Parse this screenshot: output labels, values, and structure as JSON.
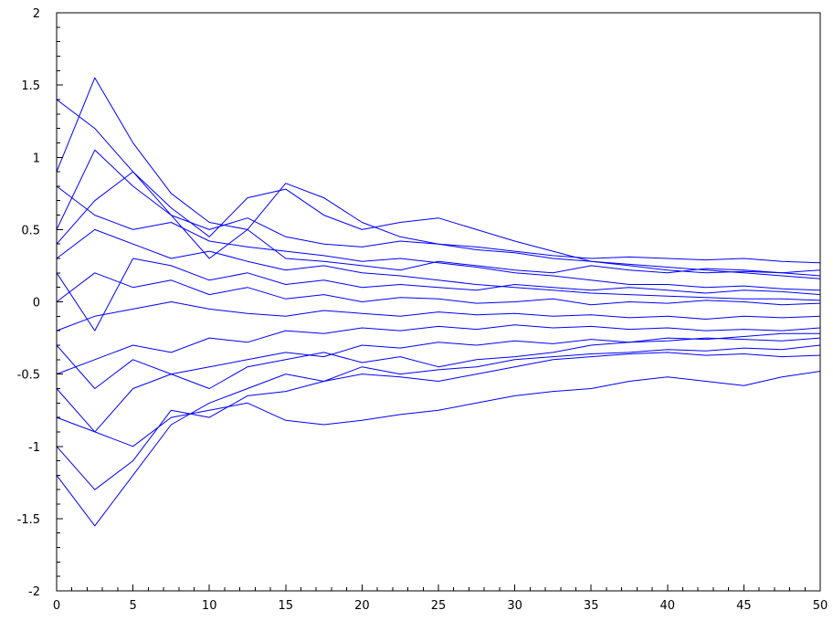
{
  "chart_data": {
    "type": "line",
    "title": "",
    "xlabel": "",
    "ylabel": "",
    "xlim": [
      0,
      50
    ],
    "ylim": [
      -2,
      2
    ],
    "grid": false,
    "legend": "none",
    "series_color": "#0000ff",
    "axis_color": "#000000",
    "background": "#ffffff",
    "x_ticks": [
      {
        "value": 0,
        "label": "0"
      },
      {
        "value": 5,
        "label": "5"
      },
      {
        "value": 10,
        "label": "10"
      },
      {
        "value": 15,
        "label": "15"
      },
      {
        "value": 20,
        "label": "20"
      },
      {
        "value": 25,
        "label": "25"
      },
      {
        "value": 30,
        "label": "30"
      },
      {
        "value": 35,
        "label": "35"
      },
      {
        "value": 40,
        "label": "40"
      },
      {
        "value": 45,
        "label": "45"
      },
      {
        "value": 50,
        "label": "50"
      }
    ],
    "y_ticks": [
      {
        "value": -2,
        "label": "-2"
      },
      {
        "value": -1.5,
        "label": "-1.5"
      },
      {
        "value": -1,
        "label": "-1"
      },
      {
        "value": -0.5,
        "label": "-0.5"
      },
      {
        "value": 0,
        "label": "0"
      },
      {
        "value": 0.5,
        "label": "0.5"
      },
      {
        "value": 1,
        "label": "1"
      },
      {
        "value": 1.5,
        "label": "1.5"
      },
      {
        "value": 2,
        "label": "2"
      }
    ],
    "series": [
      {
        "x": [
          0,
          2.5,
          5,
          7.5,
          10,
          12.5,
          15,
          17.5,
          20,
          22.5,
          25,
          27.5,
          30,
          32.5,
          35,
          37.5,
          40,
          42.5,
          45,
          47.5,
          50
        ],
        "values": [
          0.9,
          1.55,
          1.1,
          0.75,
          0.55,
          0.5,
          0.82,
          0.72,
          0.55,
          0.45,
          0.4,
          0.38,
          0.35,
          0.32,
          0.3,
          0.31,
          0.3,
          0.29,
          0.3,
          0.28,
          0.27
        ]
      },
      {
        "x": [
          0,
          2.5,
          5,
          7.5,
          10,
          12.5,
          15,
          17.5,
          20,
          22.5,
          25,
          27.5,
          30,
          32.5,
          35,
          37.5,
          40,
          42.5,
          45,
          47.5,
          50
        ],
        "values": [
          1.4,
          1.2,
          0.9,
          0.65,
          0.45,
          0.72,
          0.78,
          0.6,
          0.5,
          0.55,
          0.58,
          0.5,
          0.42,
          0.35,
          0.28,
          0.25,
          0.22,
          0.2,
          0.21,
          0.2,
          0.18
        ]
      },
      {
        "x": [
          0,
          2.5,
          5,
          7.5,
          10,
          12.5,
          15,
          17.5,
          20,
          22.5,
          25,
          27.5,
          30,
          32.5,
          35,
          37.5,
          40,
          42.5,
          45,
          47.5,
          50
        ],
        "values": [
          0.5,
          1.05,
          0.8,
          0.6,
          0.5,
          0.58,
          0.45,
          0.4,
          0.38,
          0.42,
          0.4,
          0.36,
          0.34,
          0.3,
          0.28,
          0.26,
          0.24,
          0.22,
          0.2,
          0.18,
          0.16
        ]
      },
      {
        "x": [
          0,
          2.5,
          5,
          7.5,
          10,
          12.5,
          15,
          17.5,
          20,
          22.5,
          25,
          27.5,
          30,
          32.5,
          35,
          37.5,
          40,
          42.5,
          45,
          47.5,
          50
        ],
        "values": [
          0.8,
          0.6,
          0.5,
          0.55,
          0.42,
          0.38,
          0.35,
          0.32,
          0.28,
          0.3,
          0.27,
          0.24,
          0.2,
          0.18,
          0.15,
          0.12,
          0.12,
          0.1,
          0.11,
          0.09,
          0.08
        ]
      },
      {
        "x": [
          0,
          2.5,
          5,
          7.5,
          10,
          12.5,
          15,
          17.5,
          20,
          22.5,
          25,
          27.5,
          30,
          32.5,
          35,
          37.5,
          40,
          42.5,
          45,
          47.5,
          50
        ],
        "values": [
          0.3,
          0.5,
          0.4,
          0.3,
          0.35,
          0.28,
          0.22,
          0.25,
          0.2,
          0.18,
          0.15,
          0.12,
          0.1,
          0.08,
          0.06,
          0.05,
          0.04,
          0.03,
          0.02,
          0.02,
          0.01
        ]
      },
      {
        "x": [
          0,
          2.5,
          5,
          7.5,
          10,
          12.5,
          15,
          17.5,
          20,
          22.5,
          25,
          27.5,
          30,
          32.5,
          35,
          37.5,
          40,
          42.5,
          45,
          47.5,
          50
        ],
        "values": [
          0.0,
          0.2,
          0.1,
          0.15,
          0.05,
          0.1,
          0.02,
          0.05,
          0.0,
          0.03,
          0.02,
          -0.01,
          0.0,
          0.02,
          -0.02,
          0.0,
          -0.01,
          0.01,
          0.0,
          -0.02,
          -0.01
        ]
      },
      {
        "x": [
          0,
          2.5,
          5,
          7.5,
          10,
          12.5,
          15,
          17.5,
          20,
          22.5,
          25,
          27.5,
          30,
          32.5,
          35,
          37.5,
          40,
          42.5,
          45,
          47.5,
          50
        ],
        "values": [
          -0.2,
          -0.1,
          -0.05,
          0.0,
          -0.05,
          -0.08,
          -0.1,
          -0.06,
          -0.08,
          -0.1,
          -0.07,
          -0.09,
          -0.08,
          -0.1,
          -0.09,
          -0.11,
          -0.1,
          -0.12,
          -0.1,
          -0.11,
          -0.1
        ]
      },
      {
        "x": [
          0,
          2.5,
          5,
          7.5,
          10,
          12.5,
          15,
          17.5,
          20,
          22.5,
          25,
          27.5,
          30,
          32.5,
          35,
          37.5,
          40,
          42.5,
          45,
          47.5,
          50
        ],
        "values": [
          -0.5,
          -0.4,
          -0.3,
          -0.35,
          -0.25,
          -0.28,
          -0.2,
          -0.22,
          -0.18,
          -0.2,
          -0.17,
          -0.19,
          -0.16,
          -0.18,
          -0.17,
          -0.19,
          -0.18,
          -0.2,
          -0.19,
          -0.2,
          -0.18
        ]
      },
      {
        "x": [
          0,
          2.5,
          5,
          7.5,
          10,
          12.5,
          15,
          17.5,
          20,
          22.5,
          25,
          27.5,
          30,
          32.5,
          35,
          37.5,
          40,
          42.5,
          45,
          47.5,
          50
        ],
        "values": [
          -0.8,
          -0.9,
          -0.6,
          -0.5,
          -0.45,
          -0.4,
          -0.35,
          -0.38,
          -0.3,
          -0.32,
          -0.28,
          -0.3,
          -0.27,
          -0.29,
          -0.26,
          -0.28,
          -0.27,
          -0.25,
          -0.26,
          -0.27,
          -0.25
        ]
      },
      {
        "x": [
          0,
          2.5,
          5,
          7.5,
          10,
          12.5,
          15,
          17.5,
          20,
          22.5,
          25,
          27.5,
          30,
          32.5,
          35,
          37.5,
          40,
          42.5,
          45,
          47.5,
          50
        ],
        "values": [
          -1.2,
          -1.55,
          -1.2,
          -0.85,
          -0.7,
          -0.6,
          -0.5,
          -0.55,
          -0.45,
          -0.5,
          -0.47,
          -0.45,
          -0.4,
          -0.38,
          -0.36,
          -0.35,
          -0.33,
          -0.34,
          -0.32,
          -0.33,
          -0.3
        ]
      },
      {
        "x": [
          0,
          2.5,
          5,
          7.5,
          10,
          12.5,
          15,
          17.5,
          20,
          22.5,
          25,
          27.5,
          30,
          32.5,
          35,
          37.5,
          40,
          42.5,
          45,
          47.5,
          50
        ],
        "values": [
          -1.0,
          -1.3,
          -1.1,
          -0.75,
          -0.8,
          -0.65,
          -0.62,
          -0.55,
          -0.5,
          -0.52,
          -0.55,
          -0.5,
          -0.45,
          -0.4,
          -0.38,
          -0.36,
          -0.35,
          -0.37,
          -0.36,
          -0.38,
          -0.37
        ]
      },
      {
        "x": [
          0,
          2.5,
          5,
          7.5,
          10,
          12.5,
          15,
          17.5,
          20,
          22.5,
          25,
          27.5,
          30,
          32.5,
          35,
          37.5,
          40,
          42.5,
          45,
          47.5,
          50
        ],
        "values": [
          -0.6,
          -0.9,
          -1.0,
          -0.8,
          -0.75,
          -0.7,
          -0.82,
          -0.85,
          -0.82,
          -0.78,
          -0.75,
          -0.7,
          -0.65,
          -0.62,
          -0.6,
          -0.55,
          -0.52,
          -0.55,
          -0.58,
          -0.52,
          -0.48
        ]
      },
      {
        "x": [
          0,
          2.5,
          5,
          7.5,
          10,
          12.5,
          15,
          17.5,
          20,
          22.5,
          25,
          27.5,
          30,
          32.5,
          35,
          37.5,
          40,
          42.5,
          45,
          47.5,
          50
        ],
        "values": [
          0.4,
          0.7,
          0.9,
          0.6,
          0.3,
          0.5,
          0.3,
          0.28,
          0.25,
          0.22,
          0.28,
          0.25,
          0.22,
          0.2,
          0.25,
          0.22,
          0.2,
          0.23,
          0.22,
          0.2,
          0.22
        ]
      },
      {
        "x": [
          0,
          2.5,
          5,
          7.5,
          10,
          12.5,
          15,
          17.5,
          20,
          22.5,
          25,
          27.5,
          30,
          32.5,
          35,
          37.5,
          40,
          42.5,
          45,
          47.5,
          50
        ],
        "values": [
          -0.3,
          -0.6,
          -0.4,
          -0.5,
          -0.6,
          -0.45,
          -0.4,
          -0.35,
          -0.42,
          -0.38,
          -0.45,
          -0.4,
          -0.38,
          -0.35,
          -0.3,
          -0.28,
          -0.25,
          -0.26,
          -0.24,
          -0.22,
          -0.22
        ]
      },
      {
        "x": [
          0,
          2.5,
          5,
          7.5,
          10,
          12.5,
          15,
          17.5,
          20,
          22.5,
          25,
          27.5,
          30,
          32.5,
          35,
          37.5,
          40,
          42.5,
          45,
          47.5,
          50
        ],
        "values": [
          0.2,
          -0.2,
          0.3,
          0.25,
          0.15,
          0.2,
          0.12,
          0.15,
          0.1,
          0.12,
          0.1,
          0.08,
          0.12,
          0.1,
          0.08,
          0.1,
          0.08,
          0.06,
          0.08,
          0.07,
          0.05
        ]
      }
    ]
  }
}
